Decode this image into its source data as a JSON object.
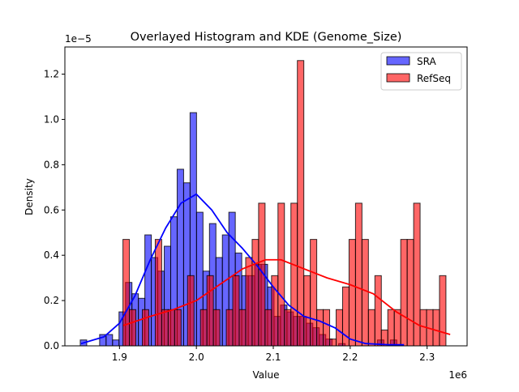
{
  "chart_data": {
    "type": "histogram+kde",
    "title": "Overlayed Histogram and KDE (Genome_Size)",
    "xlabel": "Value",
    "ylabel": "Density",
    "x_offset_label": "1e6",
    "y_offset_label": "1e−5",
    "xlim": [
      1.829,
      2.352
    ],
    "ylim": [
      0,
      1.32
    ],
    "xticks": [
      "1.9",
      "2.0",
      "2.1",
      "2.2",
      "2.3"
    ],
    "xtick_values": [
      1.9,
      2.0,
      2.1,
      2.2,
      2.3
    ],
    "yticks": [
      "0.0",
      "0.2",
      "0.4",
      "0.6",
      "0.8",
      "1.0",
      "1.2"
    ],
    "ytick_values": [
      0,
      0.2,
      0.4,
      0.6,
      0.8,
      1.0,
      1.2
    ],
    "legend_placement": "top-right",
    "series": [
      {
        "name": "SRA",
        "color": "#0000ff",
        "bin_start": 1.849,
        "bin_width": 0.0084,
        "densities": [
          0.026,
          0,
          0,
          0.05,
          0.05,
          0.026,
          0.15,
          0.28,
          0.23,
          0.21,
          0.49,
          0.39,
          0.33,
          0.44,
          0.57,
          0.78,
          0.72,
          1.03,
          0.59,
          0.33,
          0.54,
          0.39,
          0.49,
          0.59,
          0.41,
          0.31,
          0.31,
          0.36,
          0.36,
          0.26,
          0.13,
          0.18,
          0.15,
          0.13,
          0.13,
          0.1,
          0.08,
          0.05,
          0.03,
          0,
          0.01,
          0,
          0,
          0,
          0,
          0,
          0.026,
          0,
          0.026,
          0
        ],
        "kde": {
          "x": [
            1.85,
            1.88,
            1.9,
            1.92,
            1.94,
            1.96,
            1.98,
            2.0,
            2.02,
            2.04,
            2.06,
            2.08,
            2.1,
            2.12,
            2.14,
            2.16,
            2.18,
            2.2,
            2.22,
            2.25,
            2.27
          ],
          "y": [
            0.01,
            0.04,
            0.1,
            0.22,
            0.38,
            0.52,
            0.63,
            0.67,
            0.6,
            0.5,
            0.43,
            0.35,
            0.26,
            0.18,
            0.13,
            0.11,
            0.08,
            0.03,
            0.01,
            0.005,
            0.005
          ]
        }
      },
      {
        "name": "RefSeq",
        "color": "#ff0000",
        "bin_start": 1.9045,
        "bin_width": 0.0084,
        "densities": [
          0.47,
          0.16,
          0,
          0.16,
          0,
          0.47,
          0.16,
          0.16,
          0.16,
          0,
          0.31,
          0,
          0.16,
          0.31,
          0.16,
          0,
          0.16,
          0.31,
          0.16,
          0.39,
          0.47,
          0.63,
          0.16,
          0.31,
          0.63,
          0.16,
          0.63,
          1.26,
          0.31,
          0.47,
          0.16,
          0.16,
          0.03,
          0.16,
          0.26,
          0.47,
          0.63,
          0.47,
          0.16,
          0.31,
          0.07,
          0.16,
          0.16,
          0.47,
          0.47,
          0.63,
          0.16,
          0.16,
          0.16,
          0.31
        ],
        "kde": {
          "x": [
            1.905,
            1.94,
            1.97,
            2.0,
            2.03,
            2.06,
            2.09,
            2.11,
            2.14,
            2.17,
            2.2,
            2.23,
            2.26,
            2.29,
            2.33
          ],
          "y": [
            0.09,
            0.13,
            0.16,
            0.2,
            0.27,
            0.34,
            0.38,
            0.38,
            0.34,
            0.3,
            0.27,
            0.23,
            0.15,
            0.09,
            0.05
          ]
        }
      }
    ]
  }
}
